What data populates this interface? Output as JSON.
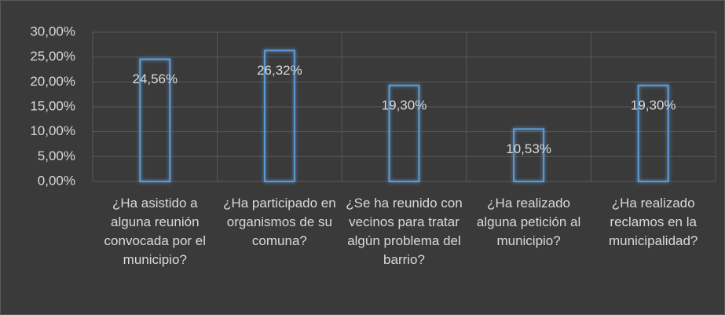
{
  "chart_data": {
    "type": "bar",
    "categories": [
      "¿Ha asistido a alguna reunión convocada por el municipio?",
      "¿Ha participado en organismos de su comuna?",
      "¿Se ha reunido con vecinos para tratar algún problema del barrio?",
      "¿Ha realizado alguna petición al municipio?",
      "¿Ha realizado reclamos en la municipalidad?"
    ],
    "values": [
      24.56,
      26.32,
      19.3,
      10.53,
      19.3
    ],
    "value_labels": [
      "24,56%",
      "26,32%",
      "19,30%",
      "10,53%",
      "19,30%"
    ],
    "color": "#5b9bd5",
    "ylim": [
      0,
      30
    ],
    "yticks": [
      {
        "value": 0,
        "label": "0,00%"
      },
      {
        "value": 5,
        "label": "5,00%"
      },
      {
        "value": 10,
        "label": "10,00%"
      },
      {
        "value": 15,
        "label": "15,00%"
      },
      {
        "value": 20,
        "label": "20,00%"
      },
      {
        "value": 25,
        "label": "25,00%"
      },
      {
        "value": 30,
        "label": "30,00%"
      }
    ],
    "grid": true
  }
}
